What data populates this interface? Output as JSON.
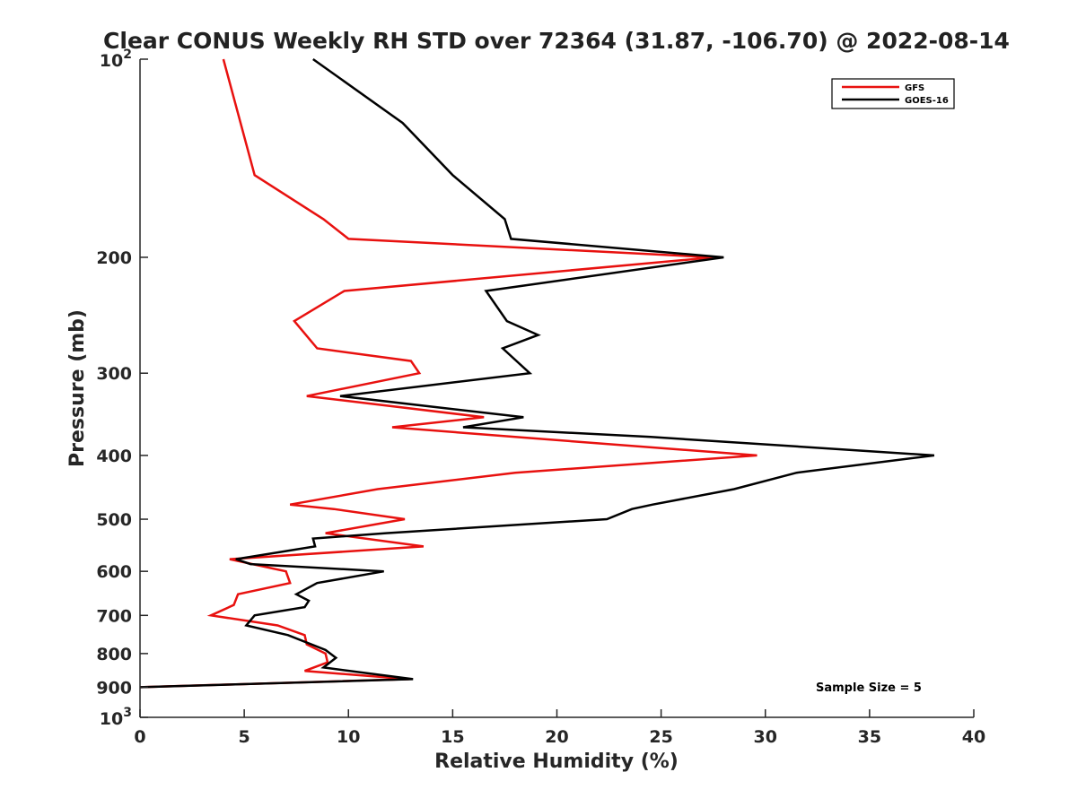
{
  "chart_data": {
    "type": "line",
    "title": "Clear CONUS Weekly RH STD over 72364 (31.87, -106.70) @ 2022-08-14",
    "xlabel": "Relative Humidity (%)",
    "ylabel": "Pressure (mb)",
    "xlim": [
      0,
      40
    ],
    "ylim": [
      100,
      1000
    ],
    "y_scale": "log",
    "y_reversed": true,
    "grid": false,
    "legend_position": "top-right",
    "x_ticks": [
      0,
      5,
      10,
      15,
      20,
      25,
      30,
      35,
      40
    ],
    "x_tick_labels": [
      "0",
      "5",
      "10",
      "15",
      "20",
      "25",
      "30",
      "35",
      "40"
    ],
    "y_ticks": [
      200,
      300,
      400,
      500,
      600,
      700,
      800,
      900
    ],
    "y_tick_labels": [
      "200",
      "300",
      "400",
      "500",
      "600",
      "700",
      "800",
      "900"
    ],
    "y_decade_labels": [
      {
        "value": 100,
        "base": "10",
        "exp": "2"
      },
      {
        "value": 1000,
        "base": "10",
        "exp": "3"
      }
    ],
    "annotation": "Sample Size = 5",
    "series": [
      {
        "name": "GFS",
        "color": "#e8110f",
        "points": [
          {
            "x": 4.0,
            "p": 100
          },
          {
            "x": 5.5,
            "p": 150
          },
          {
            "x": 8.8,
            "p": 175
          },
          {
            "x": 10.0,
            "p": 187.5
          },
          {
            "x": 27.5,
            "p": 200
          },
          {
            "x": 9.8,
            "p": 225
          },
          {
            "x": 7.4,
            "p": 250
          },
          {
            "x": 8.5,
            "p": 275
          },
          {
            "x": 13.0,
            "p": 287.5
          },
          {
            "x": 13.4,
            "p": 300
          },
          {
            "x": 8.0,
            "p": 325
          },
          {
            "x": 16.5,
            "p": 350
          },
          {
            "x": 12.1,
            "p": 362.5
          },
          {
            "x": 18.0,
            "p": 375
          },
          {
            "x": 29.6,
            "p": 400
          },
          {
            "x": 18.0,
            "p": 425
          },
          {
            "x": 11.4,
            "p": 450
          },
          {
            "x": 7.2,
            "p": 475
          },
          {
            "x": 9.3,
            "p": 482.5
          },
          {
            "x": 12.7,
            "p": 500
          },
          {
            "x": 8.9,
            "p": 525
          },
          {
            "x": 13.6,
            "p": 550
          },
          {
            "x": 4.3,
            "p": 575
          },
          {
            "x": 7.0,
            "p": 600
          },
          {
            "x": 7.2,
            "p": 625
          },
          {
            "x": 4.7,
            "p": 650
          },
          {
            "x": 4.5,
            "p": 675
          },
          {
            "x": 3.4,
            "p": 700
          },
          {
            "x": 6.6,
            "p": 725
          },
          {
            "x": 7.9,
            "p": 750
          },
          {
            "x": 8.0,
            "p": 775
          },
          {
            "x": 8.9,
            "p": 800
          },
          {
            "x": 9.0,
            "p": 825
          },
          {
            "x": 7.9,
            "p": 850
          },
          {
            "x": 12.9,
            "p": 875
          },
          {
            "x": 0.0,
            "p": 900
          }
        ]
      },
      {
        "name": "GOES-16",
        "color": "#000000",
        "points": [
          {
            "x": 8.3,
            "p": 100
          },
          {
            "x": 12.6,
            "p": 125
          },
          {
            "x": 15.0,
            "p": 150
          },
          {
            "x": 17.5,
            "p": 175
          },
          {
            "x": 17.8,
            "p": 187.5
          },
          {
            "x": 28.0,
            "p": 200
          },
          {
            "x": 16.6,
            "p": 225
          },
          {
            "x": 17.6,
            "p": 250
          },
          {
            "x": 19.1,
            "p": 262.5
          },
          {
            "x": 17.4,
            "p": 275
          },
          {
            "x": 18.7,
            "p": 300
          },
          {
            "x": 9.6,
            "p": 325
          },
          {
            "x": 18.4,
            "p": 350
          },
          {
            "x": 15.5,
            "p": 362.5
          },
          {
            "x": 24.5,
            "p": 375
          },
          {
            "x": 38.1,
            "p": 400
          },
          {
            "x": 31.5,
            "p": 425
          },
          {
            "x": 28.5,
            "p": 450
          },
          {
            "x": 24.6,
            "p": 475
          },
          {
            "x": 23.6,
            "p": 482.5
          },
          {
            "x": 22.4,
            "p": 500
          },
          {
            "x": 11.8,
            "p": 525
          },
          {
            "x": 8.3,
            "p": 535
          },
          {
            "x": 8.4,
            "p": 550
          },
          {
            "x": 4.6,
            "p": 575
          },
          {
            "x": 5.3,
            "p": 585
          },
          {
            "x": 11.7,
            "p": 600
          },
          {
            "x": 8.5,
            "p": 625
          },
          {
            "x": 7.5,
            "p": 650
          },
          {
            "x": 8.1,
            "p": 665
          },
          {
            "x": 7.9,
            "p": 680
          },
          {
            "x": 5.5,
            "p": 700
          },
          {
            "x": 5.1,
            "p": 725
          },
          {
            "x": 7.1,
            "p": 750
          },
          {
            "x": 8.9,
            "p": 790
          },
          {
            "x": 9.4,
            "p": 812
          },
          {
            "x": 8.8,
            "p": 840
          },
          {
            "x": 13.1,
            "p": 875
          },
          {
            "x": 0.0,
            "p": 900
          }
        ]
      }
    ]
  }
}
